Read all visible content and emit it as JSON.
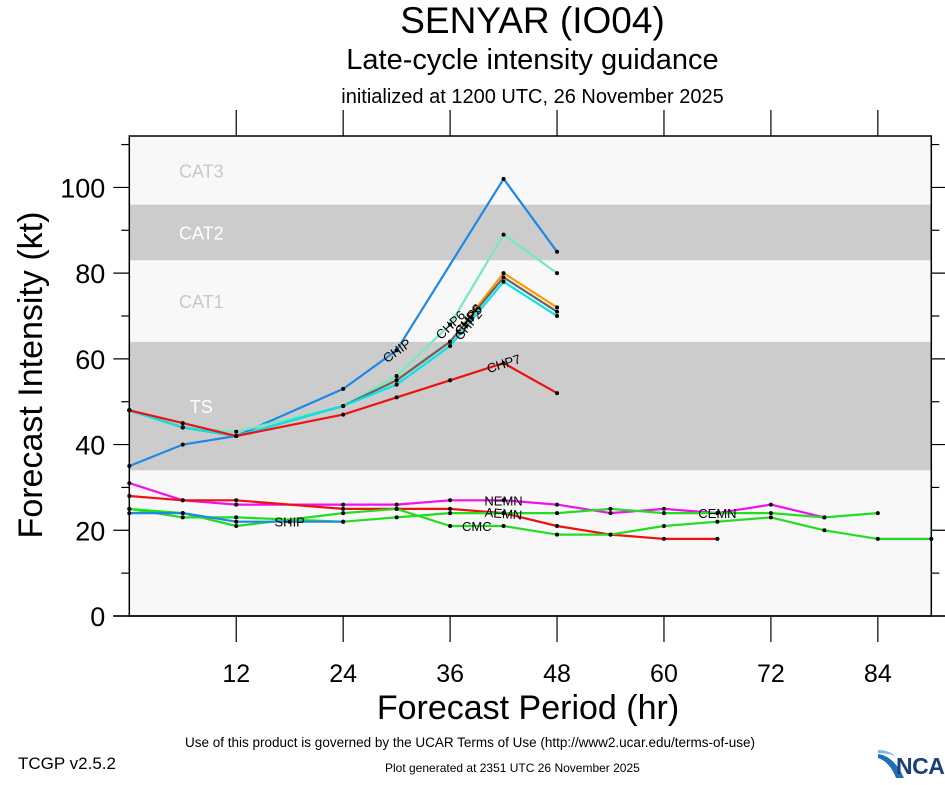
{
  "header": {
    "title": "SENYAR (IO04)",
    "subtitle": "Late-cycle intensity guidance",
    "initialized": "initialized at 1200 UTC, 26 November 2025"
  },
  "footer": {
    "terms": "Use of this product is governed by the UCAR Terms of Use (http://www2.ucar.edu/terms-of-use)",
    "generated": "Plot generated at 2351 UTC   26 November 2025",
    "version": "TCGP v2.5.2",
    "logo_text": "NCAR",
    "logo_accent": "#1f6fb8"
  },
  "chart_data": {
    "type": "line",
    "title": "SENYAR (IO04) Late-cycle intensity guidance",
    "xlabel": "Forecast Period (hr)",
    "ylabel": "Forecast Intensity (kt)",
    "xlim": [
      0,
      90
    ],
    "ylim": [
      0,
      112
    ],
    "xticks": [
      12,
      24,
      36,
      48,
      60,
      72,
      84
    ],
    "yticks": [
      0,
      20,
      40,
      60,
      80,
      100
    ],
    "grid": false,
    "legend": "none (inline line labels)",
    "bands": [
      {
        "name": "TS",
        "from": 34,
        "to": 64,
        "color": "#cccccc",
        "label_color": "#ffffff"
      },
      {
        "name": "CAT1",
        "from": 64,
        "to": 83,
        "color": "#f8f8f8",
        "label_color": "#c8c8c8"
      },
      {
        "name": "CAT2",
        "from": 83,
        "to": 96,
        "color": "#cccccc",
        "label_color": "#ffffff"
      },
      {
        "name": "CAT3",
        "from": 96,
        "to": 112,
        "color": "#f8f8f8",
        "label_color": "#c8c8c8"
      }
    ],
    "background_color": "#f8f8f8",
    "series": [
      {
        "name": "CHIP",
        "color": "#1e88e5",
        "label_at": 30,
        "x": [
          0,
          6,
          12,
          24,
          30,
          42,
          48
        ],
        "y": [
          35,
          40,
          42,
          53,
          62,
          102,
          85
        ]
      },
      {
        "name": "CHP6",
        "color": "#76e8c0",
        "label_at": 36,
        "x": [
          0,
          6,
          12,
          24,
          30,
          36,
          42,
          48
        ],
        "y": [
          48,
          44,
          43,
          49,
          56,
          68,
          89,
          80
        ]
      },
      {
        "name": "CHP8",
        "color": "#ff9900",
        "label_at": 38,
        "x": [
          0,
          6,
          12,
          24,
          30,
          36,
          42,
          48
        ],
        "y": [
          48,
          44,
          42,
          49,
          55,
          64,
          80,
          72
        ]
      },
      {
        "name": "CHP5",
        "color": "#666666",
        "label_at": 38,
        "x": [
          0,
          6,
          12,
          24,
          30,
          36,
          42,
          48
        ],
        "y": [
          48,
          44,
          42,
          49,
          55,
          64,
          79,
          71
        ]
      },
      {
        "name": "CHP2",
        "color": "#00e5ee",
        "label_at": 38,
        "x": [
          0,
          6,
          12,
          24,
          30,
          36,
          42,
          48
        ],
        "y": [
          48,
          44,
          42,
          49,
          54,
          63,
          78,
          70
        ]
      },
      {
        "name": "CHP7",
        "color": "#ee1111",
        "label_at": 42,
        "x": [
          0,
          6,
          12,
          24,
          30,
          36,
          42,
          48
        ],
        "y": [
          48,
          45,
          42,
          47,
          51,
          55,
          59,
          52
        ]
      },
      {
        "name": "NEMN",
        "color": "#ee11ee",
        "label_at": 42,
        "x": [
          0,
          6,
          12,
          24,
          30,
          36,
          42,
          48,
          54,
          60,
          66,
          72,
          78
        ],
        "y": [
          31,
          27,
          26,
          26,
          26,
          27,
          27,
          26,
          24,
          25,
          24,
          26,
          23
        ]
      },
      {
        "name": "AEMN",
        "color": "#ee1111",
        "label_at": 42,
        "x": [
          0,
          6,
          12,
          24,
          30,
          36,
          42,
          48,
          54,
          60,
          66
        ],
        "y": [
          28,
          27,
          27,
          25,
          25,
          25,
          24,
          21,
          19,
          18,
          18
        ]
      },
      {
        "name": "CEMN",
        "color": "#22dd22",
        "label_at": 66,
        "x": [
          0,
          6,
          12,
          24,
          30,
          36,
          42,
          48,
          54,
          60,
          66,
          72,
          78,
          84
        ],
        "y": [
          25,
          23,
          23,
          22,
          23,
          24,
          24,
          24,
          25,
          24,
          24,
          24,
          23,
          24
        ]
      },
      {
        "name": "CMC",
        "color": "#22dd22",
        "label_at": 39,
        "x": [
          0,
          6,
          12,
          24,
          30,
          36,
          42,
          48,
          54,
          60,
          66,
          72,
          78,
          84,
          90
        ],
        "y": [
          25,
          24,
          21,
          24,
          25,
          21,
          21,
          19,
          19,
          21,
          22,
          23,
          20,
          18,
          18
        ]
      },
      {
        "name": "SHIP",
        "color": "#1e88e5",
        "label_at": 18,
        "x": [
          0,
          6,
          12,
          18,
          24
        ],
        "y": [
          24,
          24,
          22,
          22,
          22
        ]
      }
    ]
  }
}
